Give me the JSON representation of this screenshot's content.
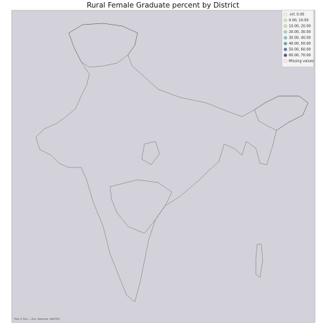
{
  "map": {
    "title": "Rural Female Graduate percent by District",
    "attribution": "Tiles © Esri — Esri, DeLorme, NAVTEQ",
    "background_color": "#d3d1d9",
    "legend": [
      {
        "label": "-inf, 0.00",
        "color": "#f4f4e8"
      },
      {
        "label": "0.00, 10.00",
        "color": "#dfe2b8"
      },
      {
        "label": "10.00, 20.00",
        "color": "#c5e3c0"
      },
      {
        "label": "20.00, 30.00",
        "color": "#a5d6c6"
      },
      {
        "label": "30.00, 40.00",
        "color": "#83c0c6"
      },
      {
        "label": "40.00, 50.00",
        "color": "#6c9fbd"
      },
      {
        "label": "50.00, 60.00",
        "color": "#5d78a6"
      },
      {
        "label": "60.00, 70.00",
        "color": "#4d5285"
      },
      {
        "label": "Missing values",
        "color": "#e0707e"
      }
    ]
  }
}
